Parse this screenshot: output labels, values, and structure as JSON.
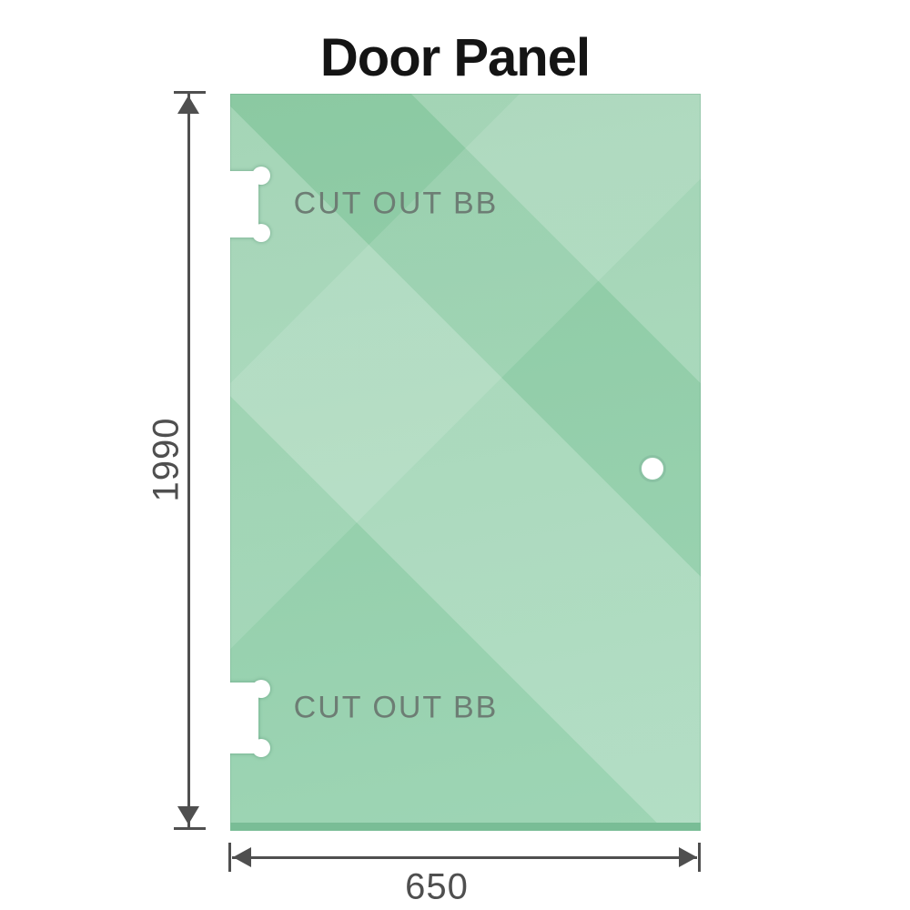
{
  "title": "Door Panel",
  "panel": {
    "cutouts": [
      {
        "label": "CUT OUT BB"
      },
      {
        "label": "CUT OUT BB"
      }
    ]
  },
  "dimensions": {
    "height_mm": "1990",
    "width_mm": "650"
  },
  "colors": {
    "title": "#141414",
    "dimension": "#4f4f4f",
    "label": "#6d7d74",
    "glass_dark": "#8bc9a2",
    "glass_light": "#9ed5b5",
    "glass_edge": "#79bd96",
    "hole_ring": "#8ac2a3"
  }
}
